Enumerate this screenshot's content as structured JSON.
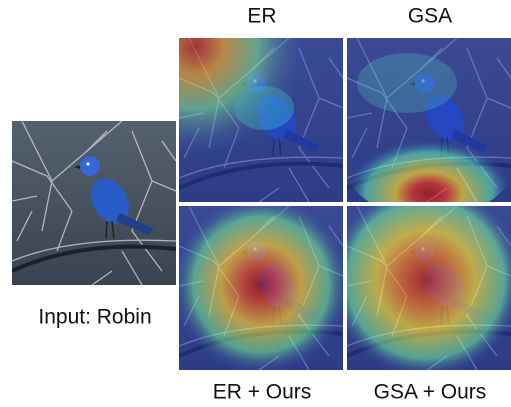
{
  "input": {
    "label": "Input: Robin"
  },
  "methods": [
    {
      "title": "ER"
    },
    {
      "title": "GSA"
    },
    {
      "title": "ER + Ours"
    },
    {
      "title": "GSA + Ours"
    }
  ]
}
